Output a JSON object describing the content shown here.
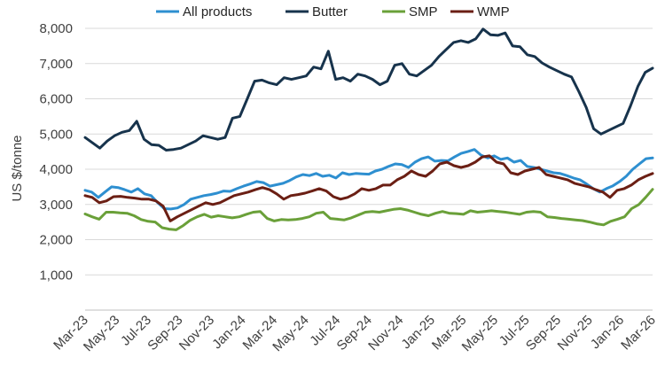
{
  "chart_data": {
    "type": "line",
    "title": "",
    "xlabel": "",
    "ylabel": "US $/tonne",
    "ylim": [
      0,
      8000
    ],
    "yticks": [
      "1,000",
      "2,000",
      "3,000",
      "4,000",
      "5,000",
      "6,000",
      "7,000",
      "8,000"
    ],
    "ytick_values": [
      1000,
      2000,
      3000,
      4000,
      5000,
      6000,
      7000,
      8000
    ],
    "grid": true,
    "legend_position": "top",
    "x_tick_labels": [
      "Mar-23",
      "May-23",
      "Jul-23",
      "Sep-23",
      "Nov-23",
      "Jan-24",
      "Mar-24",
      "May-24",
      "Jul-24",
      "Sep-24",
      "Nov-24",
      "Jan-25",
      "Mar-25",
      "May-25",
      "Jul-25",
      "Sep-25",
      "Nov-25",
      "Jan-26",
      "Mar-26"
    ],
    "series": [
      {
        "name": "All products",
        "color": "#2e8fd0",
        "values": [
          3400,
          3350,
          3200,
          3350,
          3500,
          3480,
          3420,
          3350,
          3450,
          3300,
          3250,
          3050,
          2880,
          2870,
          2900,
          3000,
          3150,
          3200,
          3250,
          3280,
          3320,
          3380,
          3370,
          3450,
          3520,
          3580,
          3650,
          3620,
          3520,
          3560,
          3600,
          3680,
          3780,
          3850,
          3820,
          3880,
          3800,
          3830,
          3750,
          3900,
          3850,
          3880,
          3870,
          3860,
          3950,
          4000,
          4080,
          4150,
          4130,
          4050,
          4200,
          4300,
          4350,
          4230,
          4250,
          4240,
          4350,
          4450,
          4500,
          4560,
          4400,
          4320,
          4380,
          4280,
          4320,
          4200,
          4250,
          4080,
          4050,
          4000,
          3950,
          3900,
          3880,
          3820,
          3750,
          3700,
          3580,
          3450,
          3350,
          3450,
          3530,
          3650,
          3800,
          4000,
          4150,
          4300,
          4320
        ]
      },
      {
        "name": "Butter",
        "color": "#17334c",
        "values": [
          4900,
          4750,
          4600,
          4800,
          4950,
          5050,
          5100,
          5360,
          4850,
          4700,
          4680,
          4540,
          4560,
          4600,
          4700,
          4800,
          4950,
          4900,
          4850,
          4900,
          5450,
          5500,
          6000,
          6500,
          6530,
          6450,
          6400,
          6600,
          6550,
          6600,
          6650,
          6900,
          6850,
          7350,
          6550,
          6600,
          6500,
          6700,
          6650,
          6550,
          6400,
          6500,
          6950,
          7000,
          6700,
          6650,
          6800,
          6950,
          7200,
          7400,
          7600,
          7650,
          7600,
          7700,
          7980,
          7820,
          7800,
          7870,
          7500,
          7480,
          7250,
          7200,
          7020,
          6900,
          6800,
          6700,
          6620,
          6200,
          5750,
          5150,
          5000,
          5100,
          5200,
          5300,
          5800,
          6350,
          6750,
          6870
        ]
      },
      {
        "name": "SMP",
        "color": "#6aa039",
        "values": [
          2730,
          2650,
          2580,
          2780,
          2780,
          2760,
          2750,
          2680,
          2570,
          2520,
          2500,
          2340,
          2300,
          2280,
          2400,
          2550,
          2650,
          2720,
          2640,
          2680,
          2650,
          2620,
          2650,
          2720,
          2780,
          2800,
          2600,
          2530,
          2570,
          2560,
          2570,
          2600,
          2650,
          2750,
          2780,
          2600,
          2580,
          2560,
          2620,
          2700,
          2780,
          2800,
          2780,
          2820,
          2860,
          2880,
          2840,
          2780,
          2720,
          2680,
          2750,
          2800,
          2750,
          2740,
          2720,
          2820,
          2780,
          2800,
          2820,
          2800,
          2780,
          2750,
          2720,
          2780,
          2800,
          2780,
          2650,
          2630,
          2600,
          2580,
          2560,
          2540,
          2500,
          2450,
          2420,
          2520,
          2580,
          2650,
          2880,
          2990,
          3200,
          3430
        ]
      },
      {
        "name": "WMP",
        "color": "#6b1f14",
        "values": [
          3250,
          3200,
          3050,
          3100,
          3220,
          3230,
          3200,
          3180,
          3150,
          3150,
          3100,
          2950,
          2530,
          2650,
          2750,
          2850,
          2950,
          3050,
          3000,
          3050,
          3150,
          3250,
          3300,
          3350,
          3420,
          3480,
          3420,
          3300,
          3150,
          3250,
          3280,
          3320,
          3380,
          3450,
          3380,
          3220,
          3150,
          3200,
          3300,
          3450,
          3400,
          3450,
          3550,
          3550,
          3700,
          3800,
          3950,
          3850,
          3800,
          3950,
          4150,
          4200,
          4100,
          4050,
          4100,
          4200,
          4350,
          4380,
          4200,
          4150,
          3900,
          3850,
          3950,
          4000,
          4050,
          3850,
          3800,
          3750,
          3700,
          3600,
          3550,
          3500,
          3420,
          3350,
          3200,
          3400,
          3450,
          3550,
          3700,
          3800,
          3880
        ]
      }
    ]
  }
}
